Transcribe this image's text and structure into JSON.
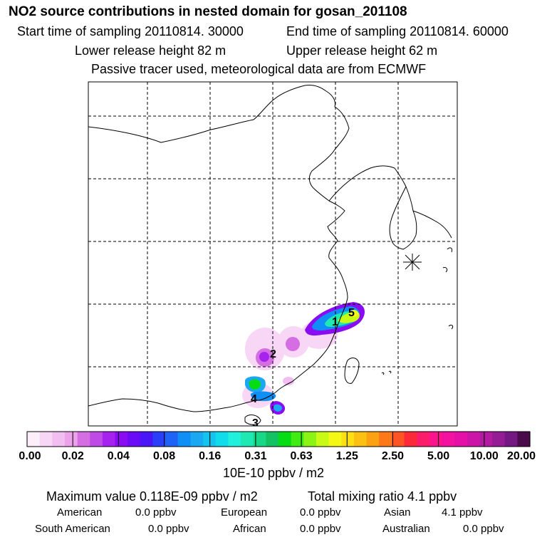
{
  "header": {
    "title": "NO2 source contributions in nested domain for gosan_201108",
    "start": "Start time of sampling 20110814. 30000",
    "end": "End time of sampling 20110814. 60000",
    "lower": "Lower release height   82 m",
    "upper": "Upper release height   62 m",
    "tracer": "Passive tracer used, meteorological data are from ECMWF"
  },
  "chart_data": {
    "type": "heatmap",
    "title": "NO2 source contributions in nested domain for gosan_201108",
    "colorbar": {
      "ticks": [
        "0.00",
        "0.02",
        "0.04",
        "0.08",
        "0.16",
        "0.31",
        "0.63",
        "1.25",
        "2.50",
        "5.00",
        "10.00",
        "20.00"
      ],
      "unit": "10E-10 ppbv / m2",
      "colors": [
        "#fdeefc",
        "#f8d6f6",
        "#f2bdf0",
        "#eca2ea",
        "#d56ee3",
        "#c04ae6",
        "#a622ee",
        "#8a0cf2",
        "#6a0cf6",
        "#4a16f8",
        "#2a40f8",
        "#1f63f6",
        "#0f8ef6",
        "#1aa8f2",
        "#14c4ee",
        "#10dcec",
        "#20f0dc",
        "#20e8b2",
        "#18d888",
        "#14c264",
        "#06dc14",
        "#40ec14",
        "#8cf414",
        "#c8fa16",
        "#f4f814",
        "#fce014",
        "#fcc014",
        "#fca014",
        "#fc7818",
        "#fc5424",
        "#fc2a38",
        "#fc1c6c",
        "#fc148c",
        "#f410a0",
        "#e410a8",
        "#cc14a8",
        "#b21aa0",
        "#941c94",
        "#741884",
        "#4a0c4a"
      ]
    },
    "labels": [
      "1",
      "2",
      "3",
      "4"
    ],
    "maximum": "Maximum value  0.118E-09 ppbv / m2",
    "total": "Total mixing ratio       4.1 ppbv",
    "contributions": [
      {
        "name": "American",
        "value": "0.0 ppbv"
      },
      {
        "name": "European",
        "value": "0.0 ppbv"
      },
      {
        "name": "Asian",
        "value": "4.1 ppbv"
      },
      {
        "name": "South American",
        "value": "0.0 ppbv"
      },
      {
        "name": "African",
        "value": "0.0 ppbv"
      },
      {
        "name": "Australian",
        "value": "0.0 ppbv"
      }
    ]
  }
}
